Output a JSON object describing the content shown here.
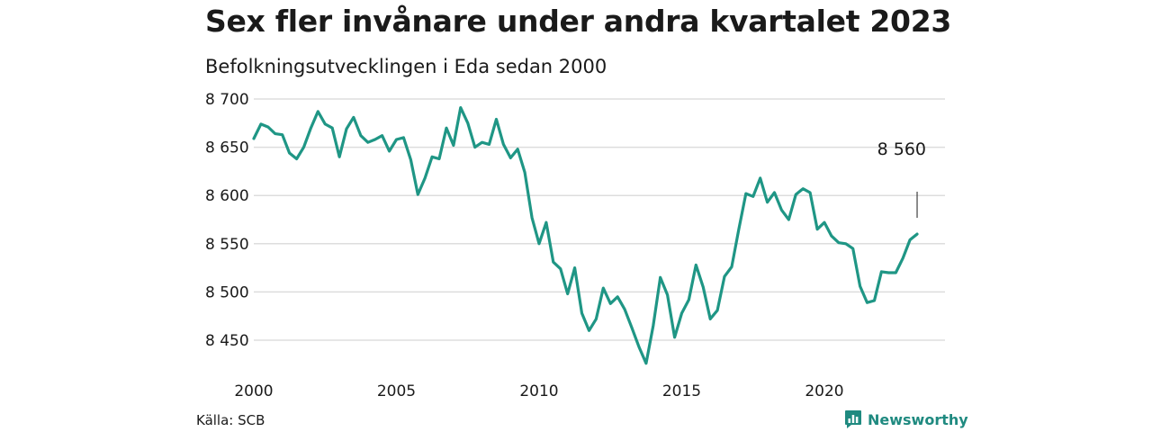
{
  "header": {
    "title": "Sex fler invånare under andra kvartalet 2023",
    "subtitle": "Befolkningsutvecklingen i Eda sedan 2000"
  },
  "footer": {
    "source": "Källa: SCB",
    "brand": "Newsworthy"
  },
  "colors": {
    "line": "#1f9685",
    "grid": "#dddddd",
    "brand": "#1f8a80"
  },
  "chart_data": {
    "type": "line",
    "title": "Sex fler invånare under andra kvartalet 2023",
    "subtitle": "Befolkningsutvecklingen i Eda sedan 2000",
    "xlabel": "",
    "ylabel": "",
    "xlim": [
      2000,
      2023.5
    ],
    "ylim": [
      8425,
      8705
    ],
    "x_ticks": [
      2000,
      2005,
      2010,
      2015,
      2020
    ],
    "x_tick_labels": [
      "2000",
      "2005",
      "2010",
      "2015",
      "2020"
    ],
    "y_ticks": [
      8450,
      8500,
      8550,
      8600,
      8650,
      8700
    ],
    "y_tick_labels": [
      "8 450",
      "8 500",
      "8 550",
      "8 600",
      "8 650",
      "8 700"
    ],
    "grid": true,
    "legend": "none",
    "annotation": {
      "text": "8 560",
      "x": 2023.25,
      "y": 8560
    },
    "series": [
      {
        "x": [
          2000.0,
          2000.25,
          2000.5,
          2000.75,
          2001.0,
          2001.25,
          2001.5,
          2001.75,
          2002.0,
          2002.25,
          2002.5,
          2002.75,
          2003.0,
          2003.25,
          2003.5,
          2003.75,
          2004.0,
          2004.25,
          2004.5,
          2004.75,
          2005.0,
          2005.25,
          2005.5,
          2005.75,
          2006.0,
          2006.25,
          2006.5,
          2006.75,
          2007.0,
          2007.25,
          2007.5,
          2007.75,
          2008.0,
          2008.25,
          2008.5,
          2008.75,
          2009.0,
          2009.25,
          2009.5,
          2009.75,
          2010.0,
          2010.25,
          2010.5,
          2010.75,
          2011.0,
          2011.25,
          2011.5,
          2011.75,
          2012.0,
          2012.25,
          2012.5,
          2012.75,
          2013.0,
          2013.25,
          2013.5,
          2013.75,
          2014.0,
          2014.25,
          2014.5,
          2014.75,
          2015.0,
          2015.25,
          2015.5,
          2015.75,
          2016.0,
          2016.25,
          2016.5,
          2016.75,
          2017.0,
          2017.25,
          2017.5,
          2017.75,
          2018.0,
          2018.25,
          2018.5,
          2018.75,
          2019.0,
          2019.25,
          2019.5,
          2019.75,
          2020.0,
          2020.25,
          2020.5,
          2020.75,
          2021.0,
          2021.25,
          2021.5,
          2021.75,
          2022.0,
          2022.25,
          2022.5,
          2022.75,
          2023.0,
          2023.25
        ],
        "values": [
          8659,
          8674,
          8671,
          8664,
          8663,
          8644,
          8638,
          8650,
          8670,
          8687,
          8674,
          8670,
          8640,
          8669,
          8681,
          8662,
          8655,
          8658,
          8662,
          8646,
          8658,
          8660,
          8637,
          8601,
          8618,
          8640,
          8638,
          8670,
          8652,
          8691,
          8675,
          8650,
          8655,
          8653,
          8679,
          8653,
          8639,
          8648,
          8624,
          8577,
          8550,
          8572,
          8531,
          8524,
          8498,
          8525,
          8478,
          8460,
          8472,
          8504,
          8488,
          8495,
          8482,
          8463,
          8443,
          8426,
          8465,
          8515,
          8497,
          8453,
          8478,
          8492,
          8528,
          8505,
          8472,
          8481,
          8516,
          8526,
          8565,
          8602,
          8599,
          8618,
          8593,
          8603,
          8585,
          8575,
          8601,
          8607,
          8603,
          8565,
          8572,
          8558,
          8551,
          8550,
          8545,
          8506,
          8489,
          8491,
          8521,
          8520,
          8520,
          8535,
          8554,
          8560
        ]
      }
    ]
  }
}
